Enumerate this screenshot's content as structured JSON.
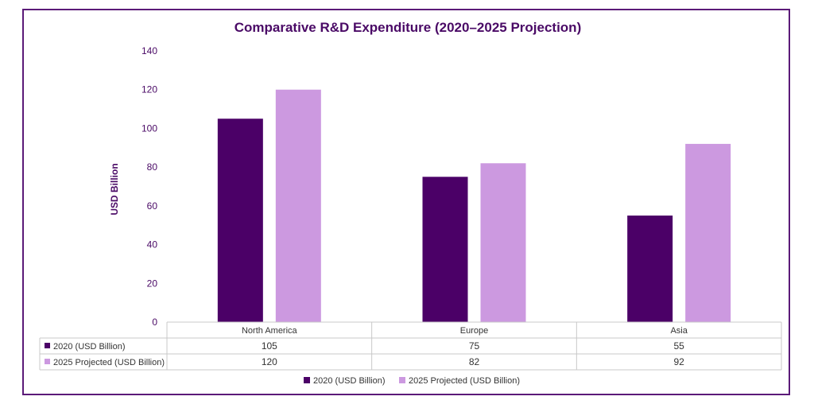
{
  "chart_data": {
    "type": "bar",
    "title": "Comparative R&D Expenditure (2020–2025 Projection)",
    "xlabel": "",
    "ylabel": "USD Billion",
    "ylim": [
      0,
      140
    ],
    "yticks": [
      0,
      20,
      40,
      60,
      80,
      100,
      120,
      140
    ],
    "categories": [
      "North America",
      "Europe",
      "Asia"
    ],
    "series": [
      {
        "name": "2020 (USD Billion)",
        "values": [
          105,
          75,
          55
        ],
        "color": "#4b0067"
      },
      {
        "name": "2025 Projected (USD Billion)",
        "values": [
          120,
          82,
          92
        ],
        "color": "#cc99e0"
      }
    ],
    "legend_position": "bottom",
    "data_table": true
  }
}
